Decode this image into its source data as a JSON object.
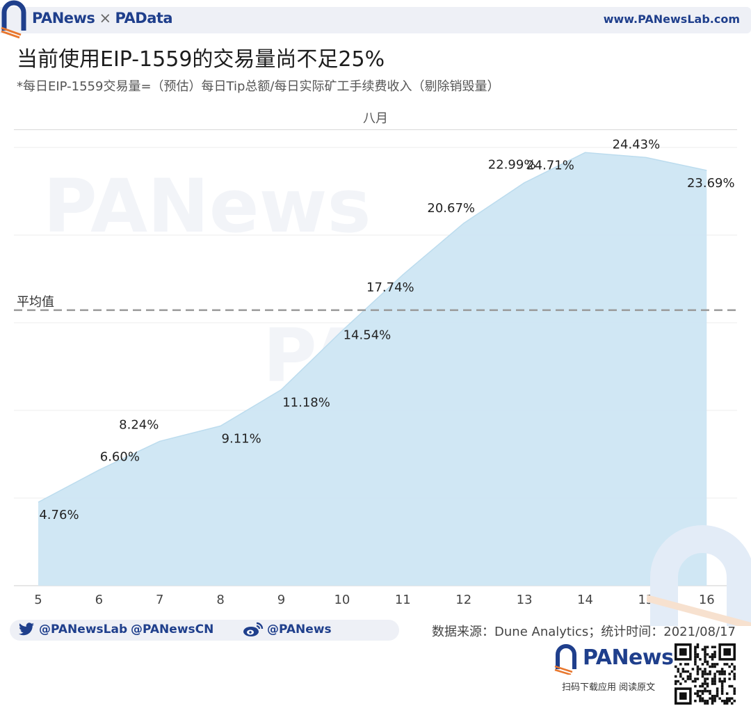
{
  "header": {
    "brand_left": "PANews",
    "brand_sep": "×",
    "brand_right": "PAData",
    "site": "www.PANewsLab.com"
  },
  "title": "当前使用EIP-1559的交易量尚不足25%",
  "subtitle": "*每日EIP-1559交易量=（预估）每日Tip总额/每日实际矿工手续费收入（剔除销毁量）",
  "watermarks": [
    "PANews",
    "PAData"
  ],
  "colors": {
    "area_fill": "#cde6f3",
    "area_stroke": "#bcdcee",
    "brand": "#1f3f8c",
    "avg_line": "#999999"
  },
  "chart_data": {
    "type": "area",
    "column_header": "八月",
    "x": [
      5,
      6,
      7,
      8,
      9,
      10,
      11,
      12,
      13,
      14,
      15,
      16
    ],
    "series": [
      {
        "values": [
          4.76,
          6.6,
          8.24,
          9.11,
          11.18,
          14.54,
          17.74,
          20.67,
          22.99,
          24.71,
          24.43,
          23.69
        ]
      }
    ],
    "data_labels": [
      "4.76%",
      "6.60%",
      "8.24%",
      "9.11%",
      "11.18%",
      "14.54%",
      "17.74%",
      "20.67%",
      "22.99%",
      "24.71%",
      "24.43%",
      "23.69%"
    ],
    "x_tick_labels": [
      "5",
      "6",
      "7",
      "8",
      "9",
      "10",
      "11",
      "12",
      "13",
      "14",
      "15",
      "16"
    ],
    "reference_line": {
      "label": "平均值",
      "style": "dashed"
    },
    "xlim": [
      4.6,
      16.5
    ],
    "ylim": [
      0,
      25
    ],
    "grid": "horizontal",
    "legend": "none"
  },
  "footer": {
    "twitter_handles": [
      "@PANewsLab",
      "@PANewsCN"
    ],
    "weibo_handle": "@PANews",
    "source": "数据来源：Dune Analytics；统计时间：2021/08/17",
    "promo_brand": "PANews",
    "promo_text": "扫码下载应用  阅读原文"
  }
}
